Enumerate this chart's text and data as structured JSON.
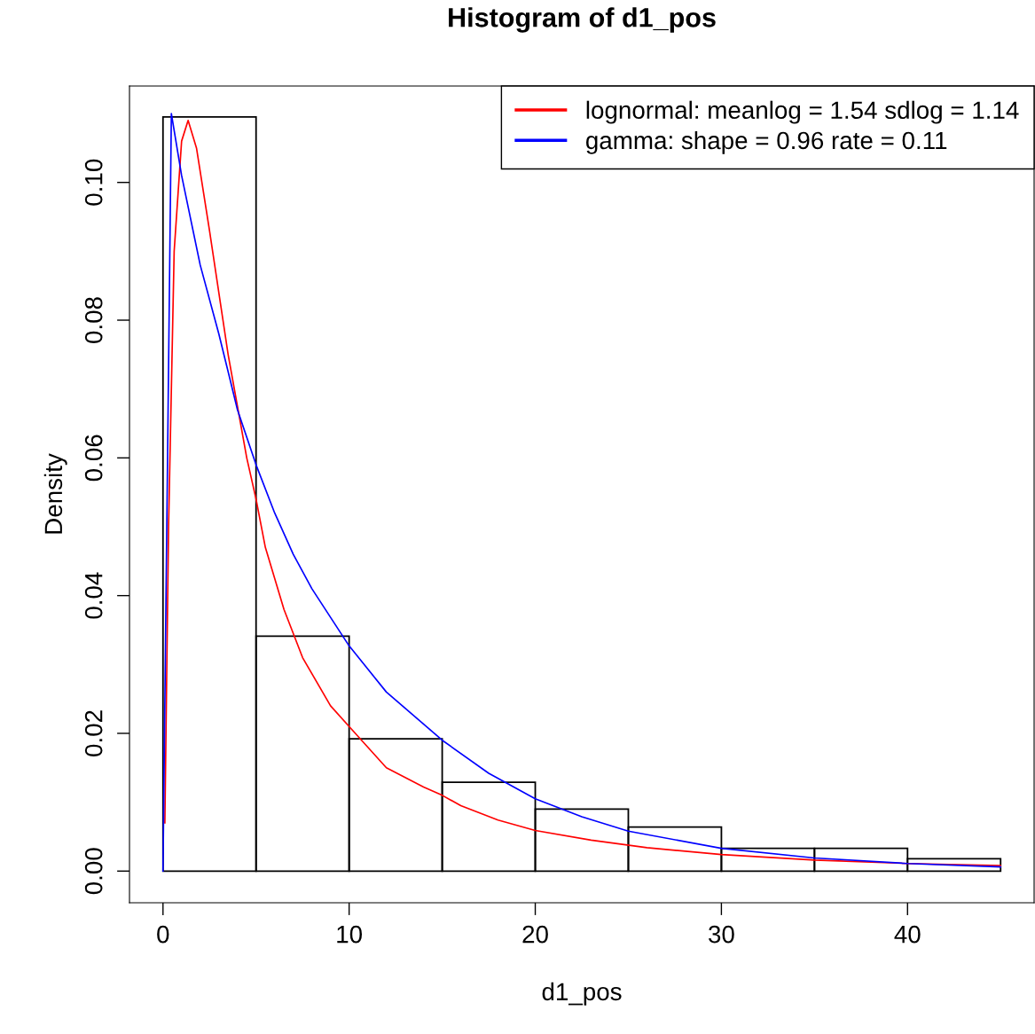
{
  "chart_data": {
    "type": "histogram",
    "title": "Histogram of d1_pos",
    "xlabel": "d1_pos",
    "ylabel": "Density",
    "bins": [
      0,
      5,
      10,
      15,
      20,
      25,
      30,
      35,
      40,
      45
    ],
    "values": [
      0.1095,
      0.0341,
      0.0192,
      0.0129,
      0.009,
      0.0064,
      0.0033,
      0.0033,
      0.0018
    ],
    "color": "#000000",
    "series": [
      {
        "type": "line",
        "name": "lognormal: meanlog = 1.54 sdlog = 1.14",
        "color": "#ff0000",
        "x": [
          0.1,
          0.3,
          0.6,
          1.0,
          1.35,
          1.8,
          2.5,
          3.5,
          4.5,
          5,
          5.5,
          6.5,
          7.5,
          9,
          10,
          12,
          14,
          15,
          16,
          18,
          20,
          23,
          26,
          30,
          35,
          40,
          45
        ],
        "values": [
          0.007,
          0.05,
          0.09,
          0.106,
          0.109,
          0.105,
          0.093,
          0.075,
          0.06,
          0.054,
          0.047,
          0.038,
          0.031,
          0.024,
          0.021,
          0.015,
          0.0122,
          0.011,
          0.0095,
          0.0074,
          0.0059,
          0.0045,
          0.0034,
          0.0024,
          0.0016,
          0.0011,
          0.0008
        ]
      },
      {
        "type": "line",
        "name": "gamma: shape = 0.96 rate = 0.11",
        "color": "#0000ff",
        "x": [
          0,
          0.45,
          1,
          2,
          3,
          4,
          5,
          6,
          7,
          8,
          10,
          12,
          15,
          17.5,
          20,
          22.5,
          25,
          30,
          35,
          40,
          45
        ],
        "values": [
          0,
          0.11,
          0.101,
          0.088,
          0.078,
          0.067,
          0.059,
          0.052,
          0.046,
          0.041,
          0.0327,
          0.026,
          0.019,
          0.0142,
          0.0105,
          0.0079,
          0.0058,
          0.0033,
          0.0019,
          0.0011,
          0.0006
        ]
      }
    ],
    "xlim": [
      -1.8,
      46.8
    ],
    "ylim": [
      -0.0046,
      0.114
    ],
    "xticks": [
      0,
      10,
      20,
      30,
      40
    ],
    "yticks": [
      {
        "value": 0,
        "label": "0.00"
      },
      {
        "value": 0.02,
        "label": "0.02"
      },
      {
        "value": 0.04,
        "label": "0.04"
      },
      {
        "value": 0.06,
        "label": "0.06"
      },
      {
        "value": 0.08,
        "label": "0.08"
      },
      {
        "value": 0.1,
        "label": "0.10"
      }
    ],
    "legend": "top right",
    "grid": false
  }
}
